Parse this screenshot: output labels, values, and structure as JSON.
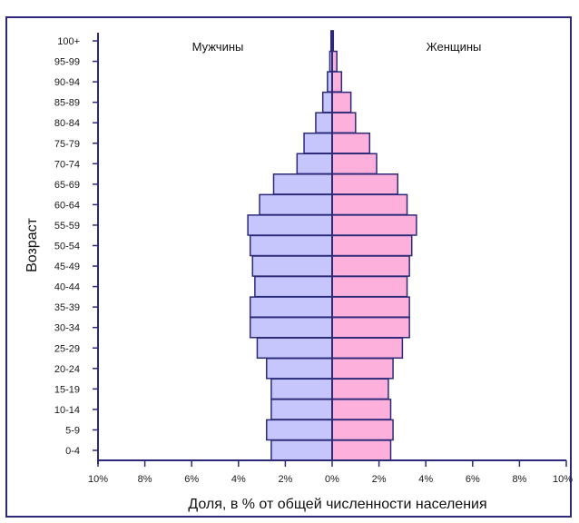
{
  "chart_data": {
    "type": "bar",
    "title": "",
    "xlabel": "Доля, в % от общей численности населения",
    "ylabel": "Возраст",
    "categories": [
      "100+",
      "95-99",
      "90-94",
      "85-89",
      "80-84",
      "75-79",
      "70-74",
      "65-69",
      "60-64",
      "55-59",
      "50-54",
      "45-49",
      "40-44",
      "35-39",
      "30-34",
      "25-29",
      "20-24",
      "15-19",
      "10-14",
      "5-9",
      "0-4"
    ],
    "series": [
      {
        "name": "Мужчины",
        "values": [
          0.05,
          0.1,
          0.2,
          0.4,
          0.7,
          1.2,
          1.5,
          2.5,
          3.1,
          3.6,
          3.5,
          3.4,
          3.3,
          3.5,
          3.5,
          3.2,
          2.8,
          2.6,
          2.6,
          2.8,
          2.6
        ]
      },
      {
        "name": "Женщины",
        "values": [
          0.05,
          0.2,
          0.4,
          0.8,
          1.0,
          1.6,
          1.9,
          2.8,
          3.2,
          3.6,
          3.4,
          3.3,
          3.2,
          3.3,
          3.3,
          3.0,
          2.6,
          2.4,
          2.5,
          2.6,
          2.5
        ]
      }
    ],
    "xlim": [
      -10,
      10
    ],
    "xticks": [
      "10%",
      "8%",
      "6%",
      "4%",
      "2%",
      "0%",
      "2%",
      "4%",
      "6%",
      "8%",
      "10%"
    ],
    "grid": false,
    "legend": "top",
    "colors": {
      "male": "#c6c6fc",
      "female": "#fdb0dc",
      "border": "#2c2a78",
      "axis": "#2c2a78"
    }
  }
}
